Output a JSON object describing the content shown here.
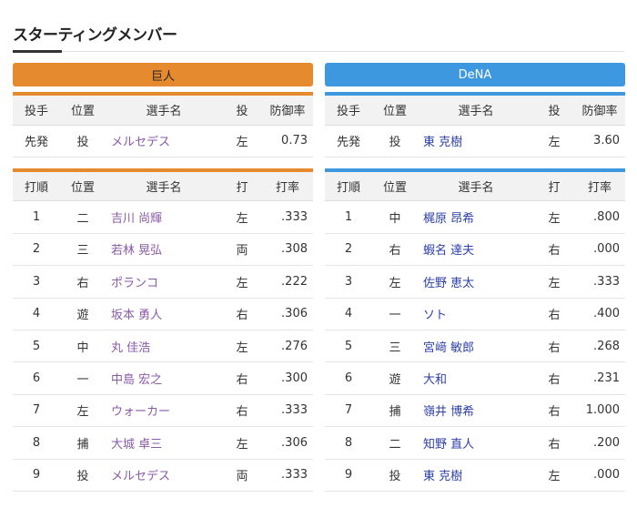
{
  "page_title": "スターティングメンバー",
  "colors": {
    "home_accent": "#e58a2e",
    "away_accent": "#3d98e0"
  },
  "teams": [
    {
      "name": "巨人",
      "pitch_headers": [
        "投手",
        "位置",
        "選手名",
        "投",
        "防御率"
      ],
      "pitcher": {
        "role": "先発",
        "pos": "投",
        "name": "メルセデス",
        "hand": "左",
        "era": "0.73"
      },
      "bat_headers": [
        "打順",
        "位置",
        "選手名",
        "打",
        "打率"
      ],
      "lineup": [
        {
          "order": "1",
          "pos": "二",
          "name": "吉川 尚輝",
          "hand": "左",
          "avg": ".333"
        },
        {
          "order": "2",
          "pos": "三",
          "name": "若林 晃弘",
          "hand": "両",
          "avg": ".308"
        },
        {
          "order": "3",
          "pos": "右",
          "name": "ポランコ",
          "hand": "左",
          "avg": ".222"
        },
        {
          "order": "4",
          "pos": "遊",
          "name": "坂本 勇人",
          "hand": "右",
          "avg": ".306"
        },
        {
          "order": "5",
          "pos": "中",
          "name": "丸 佳浩",
          "hand": "左",
          "avg": ".276"
        },
        {
          "order": "6",
          "pos": "一",
          "name": "中島 宏之",
          "hand": "右",
          "avg": ".300"
        },
        {
          "order": "7",
          "pos": "左",
          "name": "ウォーカー",
          "hand": "右",
          "avg": ".333"
        },
        {
          "order": "8",
          "pos": "捕",
          "name": "大城 卓三",
          "hand": "左",
          "avg": ".306"
        },
        {
          "order": "9",
          "pos": "投",
          "name": "メルセデス",
          "hand": "両",
          "avg": ".333"
        }
      ]
    },
    {
      "name": "DeNA",
      "pitch_headers": [
        "投手",
        "位置",
        "選手名",
        "投",
        "防御率"
      ],
      "pitcher": {
        "role": "先発",
        "pos": "投",
        "name": "東 克樹",
        "hand": "左",
        "era": "3.60"
      },
      "bat_headers": [
        "打順",
        "位置",
        "選手名",
        "打",
        "打率"
      ],
      "lineup": [
        {
          "order": "1",
          "pos": "中",
          "name": "梶原 昂希",
          "hand": "左",
          "avg": ".800"
        },
        {
          "order": "2",
          "pos": "右",
          "name": "蝦名 達夫",
          "hand": "右",
          "avg": ".000"
        },
        {
          "order": "3",
          "pos": "左",
          "name": "佐野 恵太",
          "hand": "左",
          "avg": ".333"
        },
        {
          "order": "4",
          "pos": "一",
          "name": "ソト",
          "hand": "右",
          "avg": ".400"
        },
        {
          "order": "5",
          "pos": "三",
          "name": "宮﨑 敏郎",
          "hand": "右",
          "avg": ".268"
        },
        {
          "order": "6",
          "pos": "遊",
          "name": "大和",
          "hand": "右",
          "avg": ".231"
        },
        {
          "order": "7",
          "pos": "捕",
          "name": "嶺井 博希",
          "hand": "右",
          "avg": "1.000"
        },
        {
          "order": "8",
          "pos": "二",
          "name": "知野 直人",
          "hand": "右",
          "avg": ".200"
        },
        {
          "order": "9",
          "pos": "投",
          "name": "東 克樹",
          "hand": "左",
          "avg": ".000"
        }
      ]
    }
  ]
}
